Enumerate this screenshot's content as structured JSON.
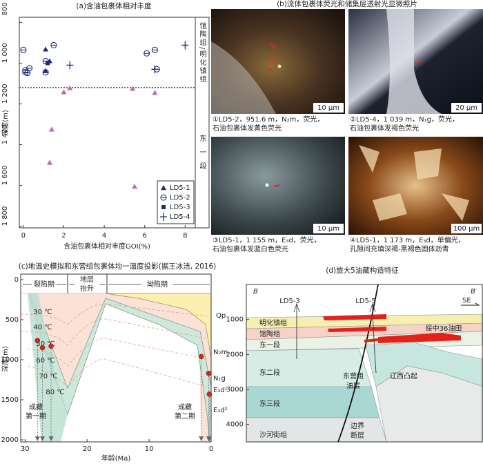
{
  "chart_data": [
    {
      "type": "scatter",
      "title": "(a)含油包裹体相对丰度",
      "xlabel": "含油包裹体相对丰度GOI(%)",
      "ylabel": "深度(m)",
      "xlim": [
        -0.2,
        8.5
      ],
      "ylim": [
        775,
        1808
      ],
      "y_inverted": true,
      "xticks": [
        0,
        2,
        4,
        6,
        8
      ],
      "yticks": [
        800,
        {
          "value": 1000,
          "label": "1 000"
        },
        {
          "value": 1200,
          "label": "1 200"
        },
        {
          "value": 1400,
          "label": "1 400"
        },
        {
          "value": 1600,
          "label": "1 600"
        },
        {
          "value": 1800,
          "label": "1 800"
        }
      ],
      "legend": "lower right",
      "series": [
        {
          "name": "LD5-1",
          "marker": "triangle",
          "color": "#1e2c7a",
          "x": [
            1.1,
            1.3,
            1.1
          ],
          "values": [
            932,
            990,
            1038
          ]
        },
        {
          "name": "LD5-2",
          "marker": "circle",
          "color": "#1e2c7a",
          "x": [
            0,
            0.1,
            0.2,
            0.3,
            0.1,
            1.1,
            1.1,
            1.5,
            6.1,
            6.5,
            6.6
          ],
          "values": [
            935,
            1035,
            1048,
            1025,
            1045,
            990,
            1045,
            912,
            952,
            935,
            1030
          ]
        },
        {
          "name": "LD5-3",
          "marker": "square",
          "color": "#1e2c7a",
          "x": [
            1.2
          ],
          "values": [
            1000
          ]
        },
        {
          "name": "LD5-4",
          "marker": "plus",
          "color": "#1e2c7a",
          "x": [
            2.3,
            8.0,
            6.5
          ],
          "values": [
            1010,
            912,
            1030
          ]
        },
        {
          "marker": "triangle",
          "color": "#c06aae",
          "x": [
            2.0,
            2.3,
            1.4,
            1.3,
            5.4,
            6.5,
            5.5
          ],
          "values": [
            1142,
            1122,
            1325,
            1488,
            1125,
            1145,
            1605
          ]
        }
      ],
      "boundary": 1120,
      "zones": [
        "馆陶组/明化镇组",
        "东一段"
      ]
    },
    {
      "type": "burial",
      "title": "(c)地温史模拟和东营组包裹体均一温度投影(据王冰洁, 2016)",
      "xlabel": "年龄(Ma)",
      "ylabel": "深度(m)",
      "xlim": [
        30.7,
        0
      ],
      "ylim": [
        0,
        2000
      ],
      "xticks": [
        30,
        20,
        10,
        0
      ],
      "yticks": [
        0,
        500,
        1000,
        1500,
        2000
      ],
      "periods": [
        "裂陷期",
        [
          "地层",
          "抬升"
        ],
        "坳陷期"
      ],
      "isotherms": [
        "30 ℃",
        "40 ℃",
        "50 ℃",
        "60 ℃",
        "70 ℃",
        "80 ℃"
      ],
      "strata": [
        "Qp",
        "N₂m",
        "N₁g",
        "E₃d¹",
        "E₃d²"
      ],
      "episodes": [
        [
          "成藏",
          "第一期"
        ],
        [
          "成藏",
          "第二期"
        ]
      ],
      "x": [
        28,
        27.2,
        25.8,
        1.6,
        0.4,
        0.3
      ],
      "values": [
        760,
        850,
        830,
        960,
        1170,
        1430
      ],
      "color": "#d42a1e"
    }
  ],
  "photos": {
    "title": "(b)流体包裹体荧光和储集层透射光显微照片",
    "items": [
      {
        "caption": [
          "①LD5-2，951.6 m，N₂m，荧光，",
          "石油包裹体发黄色荧光"
        ],
        "scale": "10 μm"
      },
      {
        "caption": [
          "②LD5-4，1 039 m，N₁g，荧光，",
          "石油包裹体发褐色荧光"
        ],
        "scale": "20 μm"
      },
      {
        "caption": [
          "③LD5-1，1 155 m，E₃d，荧光，",
          "石油包裹体发蓝白色荧光"
        ],
        "scale": "10 μm"
      },
      {
        "caption": [
          "④LD5-1，1 173 m，E₃d，单偏光，",
          "孔隙间充填深褐-黑褐色固体沥青"
        ],
        "scale": "100 μm"
      }
    ]
  },
  "section": {
    "title": "(d)旅大5油藏构造特征",
    "ylim": [
      0,
      4500
    ],
    "yticks": [
      1000,
      2000,
      3000,
      4000
    ],
    "ends": [
      "B",
      "B′"
    ],
    "direction": "SE",
    "wells": [
      "LD5-3",
      "LD5-5"
    ],
    "layers": [
      "明化镇组",
      "馆陶组",
      "东一段",
      "东二段",
      "东三段",
      "沙河街组"
    ],
    "reservoir": [
      "东营组",
      "油层"
    ],
    "uplift": "辽西凸起",
    "field": "绥中36油田",
    "fault": [
      "边界",
      "断层"
    ]
  }
}
